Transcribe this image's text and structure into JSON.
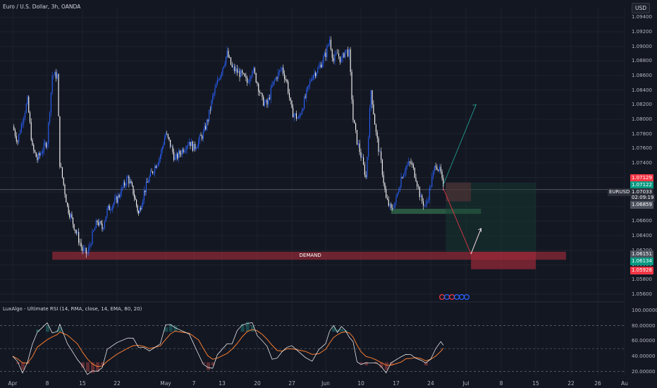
{
  "header": {
    "title": "Euro / U.S. Dollar, 3h, OANDA",
    "currency": "USD"
  },
  "indicator": {
    "title": "LuxAlgo - Ultimate RSI (14, RMA, close, 14, EMA, 80, 20)"
  },
  "annotations": {
    "demand_label": "DEMAND"
  },
  "colors": {
    "background": "#131722",
    "up_candle": "#2962ff",
    "down_candle": "#ffffff",
    "demand_zone": "#8c2a36",
    "green_zone": "#2e5e45",
    "price_line": "#787b86",
    "rsi_line": "#ffffff",
    "rsi_signal": "#f57c30",
    "overbought": "#26a69a",
    "oversold": "#ef5350"
  },
  "price_tags": [
    {
      "value": "1.07129",
      "color": "#f23645"
    },
    {
      "value": "1.07122",
      "color": "#089981"
    },
    {
      "value": "EURUSD",
      "color": "#2a2e39"
    },
    {
      "value": "1.07033",
      "color": "#2a2e39"
    },
    {
      "value": "02:09:19",
      "color": "#2a2e39"
    },
    {
      "value": "1.06859",
      "color": "#4c525e"
    },
    {
      "value": "1.06151",
      "color": "#4c525e"
    },
    {
      "value": "1.06134",
      "color": "#089981"
    },
    {
      "value": "1.05928",
      "color": "#f23645"
    }
  ],
  "chart_data": {
    "type": "candlestick",
    "title": "Euro / U.S. Dollar, 3h, OANDA",
    "x_ticks": [
      "Apr",
      "8",
      "15",
      "22",
      "May",
      "7",
      "13",
      "20",
      "27",
      "Jun",
      "10",
      "17",
      "24",
      "Jul",
      "8",
      "15",
      "22",
      "26",
      "Au"
    ],
    "y_ticks": [
      "1.09400",
      "1.09200",
      "1.09000",
      "1.08800",
      "1.08600",
      "1.08400",
      "1.08200",
      "1.08000",
      "1.07800",
      "1.07600",
      "1.07400",
      "1.07200",
      "1.07000",
      "1.06800",
      "1.06600",
      "1.06400",
      "1.06200",
      "1.06000",
      "1.05800",
      "1.05600"
    ],
    "ylim": [
      1.0552,
      1.0952
    ],
    "close_path": [
      {
        "x": "Apr 1",
        "y": 1.079
      },
      {
        "x": "Apr 2",
        "y": 1.077
      },
      {
        "x": "Apr 3",
        "y": 1.08
      },
      {
        "x": "Apr 4",
        "y": 1.0825
      },
      {
        "x": "Apr 5",
        "y": 1.076
      },
      {
        "x": "Apr 6",
        "y": 1.0745
      },
      {
        "x": "Apr 8",
        "y": 1.077
      },
      {
        "x": "Apr 9",
        "y": 1.086
      },
      {
        "x": "Apr 10",
        "y": 1.086
      },
      {
        "x": "Apr 10.5",
        "y": 1.074
      },
      {
        "x": "Apr 11",
        "y": 1.072
      },
      {
        "x": "Apr 12",
        "y": 1.068
      },
      {
        "x": "Apr 14",
        "y": 1.064
      },
      {
        "x": "Apr 15",
        "y": 1.062
      },
      {
        "x": "Apr 16",
        "y": 1.0615
      },
      {
        "x": "Apr 17",
        "y": 1.064
      },
      {
        "x": "Apr 18",
        "y": 1.066
      },
      {
        "x": "Apr 19",
        "y": 1.065
      },
      {
        "x": "Apr 20",
        "y": 1.0675
      },
      {
        "x": "Apr 22",
        "y": 1.069
      },
      {
        "x": "Apr 24",
        "y": 1.072
      },
      {
        "x": "Apr 25",
        "y": 1.07
      },
      {
        "x": "Apr 26",
        "y": 1.067
      },
      {
        "x": "Apr 27",
        "y": 1.07
      },
      {
        "x": "Apr 28",
        "y": 1.072
      },
      {
        "x": "Apr 30",
        "y": 1.075
      },
      {
        "x": "May 1",
        "y": 1.078
      },
      {
        "x": "May 2",
        "y": 1.0765
      },
      {
        "x": "May 3",
        "y": 1.0745
      },
      {
        "x": "May 6",
        "y": 1.077
      },
      {
        "x": "May 7",
        "y": 1.076
      },
      {
        "x": "May 8",
        "y": 1.077
      },
      {
        "x": "May 9",
        "y": 1.078
      },
      {
        "x": "May 10",
        "y": 1.08
      },
      {
        "x": "May 11",
        "y": 1.083
      },
      {
        "x": "May 12",
        "y": 1.085
      },
      {
        "x": "May 14",
        "y": 1.089
      },
      {
        "x": "May 15",
        "y": 1.087
      },
      {
        "x": "May 16",
        "y": 1.0865
      },
      {
        "x": "May 17",
        "y": 1.086
      },
      {
        "x": "May 18",
        "y": 1.085
      },
      {
        "x": "May 19",
        "y": 1.087
      },
      {
        "x": "May 20",
        "y": 1.085
      },
      {
        "x": "May 21",
        "y": 1.0825
      },
      {
        "x": "May 22",
        "y": 1.082
      },
      {
        "x": "May 23",
        "y": 1.0845
      },
      {
        "x": "May 24",
        "y": 1.086
      },
      {
        "x": "May 25",
        "y": 1.087
      },
      {
        "x": "May 26",
        "y": 1.085
      },
      {
        "x": "May 27",
        "y": 1.081
      },
      {
        "x": "May 28",
        "y": 1.08
      },
      {
        "x": "May 29",
        "y": 1.083
      },
      {
        "x": "May 30",
        "y": 1.086
      },
      {
        "x": "May 31",
        "y": 1.087
      },
      {
        "x": "Jun 1",
        "y": 1.089
      },
      {
        "x": "Jun 2",
        "y": 1.091
      },
      {
        "x": "Jun 3",
        "y": 1.088
      },
      {
        "x": "Jun 4",
        "y": 1.089
      },
      {
        "x": "Jun 5",
        "y": 1.088
      },
      {
        "x": "Jun 6",
        "y": 1.0895
      },
      {
        "x": "Jun 7",
        "y": 1.089
      },
      {
        "x": "Jun 8",
        "y": 1.08
      },
      {
        "x": "Jun 9",
        "y": 1.077
      },
      {
        "x": "Jun 10",
        "y": 1.075
      },
      {
        "x": "Jun 11",
        "y": 1.072
      },
      {
        "x": "Jun 12",
        "y": 1.084
      },
      {
        "x": "Jun 13",
        "y": 1.078
      },
      {
        "x": "Jun 14",
        "y": 1.074
      },
      {
        "x": "Jun 15",
        "y": 1.069
      },
      {
        "x": "Jun 16",
        "y": 1.0675
      },
      {
        "x": "Jun 17",
        "y": 1.069
      },
      {
        "x": "Jun 18",
        "y": 1.072
      },
      {
        "x": "Jun 19",
        "y": 1.0735
      },
      {
        "x": "Jun 20",
        "y": 1.074
      },
      {
        "x": "Jun 21",
        "y": 1.072
      },
      {
        "x": "Jun 22",
        "y": 1.069
      },
      {
        "x": "Jun 23",
        "y": 1.068
      },
      {
        "x": "Jun 24",
        "y": 1.071
      },
      {
        "x": "Jun 25",
        "y": 1.074
      },
      {
        "x": "Jun 26",
        "y": 1.0725
      },
      {
        "x": "Jun 26.5",
        "y": 1.0703
      }
    ],
    "zones": [
      {
        "name": "demand",
        "label": "DEMAND",
        "from": "Apr 9",
        "to": "Jul 21",
        "y_top": 1.0618,
        "y_bottom": 1.0607
      },
      {
        "name": "support",
        "from": "Jun 16",
        "to": "Jul 4",
        "y_top": 1.0677,
        "y_bottom": 1.067
      },
      {
        "name": "stop-zone",
        "from": "Jun 27",
        "to": "Jul 2",
        "y_top": 1.0713,
        "y_bottom": 1.0687
      },
      {
        "name": "target-zone",
        "from": "Jun 27",
        "to": "Jul 15",
        "y_top": 1.0713,
        "y_bottom": 1.0618
      },
      {
        "name": "lower-red-zone",
        "from": "Jul 2",
        "to": "Jul 15",
        "y_top": 1.0618,
        "y_bottom": 1.0594
      }
    ],
    "projections": [
      {
        "name": "bull-arrow",
        "from": {
          "x": "Jun 26.5",
          "y": 1.071
        },
        "to": {
          "x": "Jul 3",
          "y": 1.082
        }
      },
      {
        "name": "bear-path",
        "points": [
          {
            "x": "Jun 26.5",
            "y": 1.0705
          },
          {
            "x": "Jul 2",
            "y": 1.0615
          },
          {
            "x": "Jul 4",
            "y": 1.065
          }
        ]
      }
    ],
    "rsi": {
      "y_ticks": [
        "100.00000",
        "80.00000",
        "60.00000",
        "40.00000",
        "20.00000"
      ],
      "levels": [
        80,
        50,
        20
      ],
      "ylim": [
        15,
        100
      ],
      "values": [
        40,
        30,
        22,
        30,
        55,
        75,
        80,
        72,
        74,
        78,
        60,
        35,
        25,
        20,
        18,
        20,
        28,
        45,
        60,
        65,
        60,
        55,
        50,
        45,
        60,
        78,
        82,
        80,
        65,
        45,
        30,
        22,
        28,
        40,
        55,
        60,
        70,
        82,
        85,
        80,
        70,
        60,
        50,
        40,
        35,
        45,
        55,
        50,
        40,
        35,
        45,
        60,
        72,
        78,
        75,
        76,
        74,
        68,
        55,
        35,
        30,
        28,
        35,
        30,
        25,
        22,
        28,
        40,
        45,
        38,
        40,
        35,
        28,
        40,
        48,
        58,
        58
      ]
    }
  }
}
